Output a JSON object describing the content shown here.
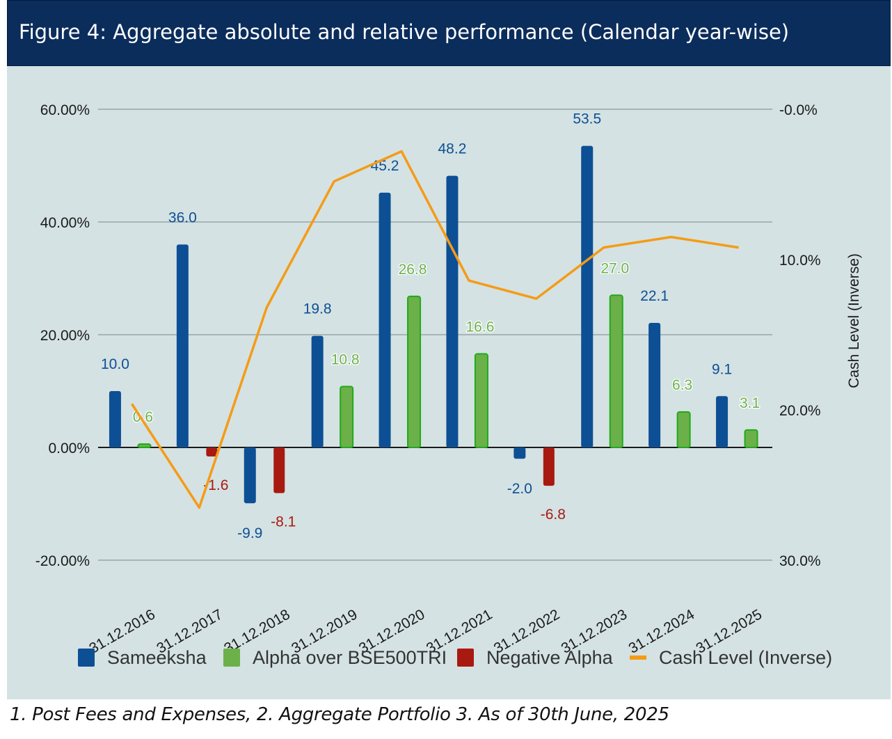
{
  "header": {
    "title": "Figure 4:  Aggregate absolute and relative performance (Calendar year-wise)"
  },
  "footnote": "1. Post Fees and Expenses, 2. Aggregate Portfolio  3. As of 30th June, 2025",
  "colors": {
    "sameeksha": "#0d4f94",
    "alpha": "#6cb04a",
    "alpha_border": "#1faa1a",
    "negative": "#a81a10",
    "cash": "#f59b16",
    "background": "#d4e2e3",
    "title_bar": "#0b2d5c"
  },
  "chart_data": {
    "type": "bar",
    "categories": [
      "31.12.2016",
      "31.12.2017",
      "31.12.2018",
      "31.12.2019",
      "31.12.2020",
      "31.12.2021",
      "31.12.2022",
      "31.12.2023",
      "31.12.2024",
      "31.12.2025"
    ],
    "series": [
      {
        "name": "Sameeksha",
        "axis": "left",
        "values": [
          10.0,
          36.0,
          -9.9,
          19.8,
          45.2,
          48.2,
          -2.0,
          53.5,
          22.1,
          9.1
        ],
        "labels": [
          "10.0",
          "36.0",
          "-9.9",
          "19.8",
          "45.2",
          "48.2",
          "-2.0",
          "53.5",
          "22.1",
          "9.1"
        ]
      },
      {
        "name": "Alpha over BSE500TRI",
        "axis": "left",
        "values": [
          0.6,
          null,
          null,
          10.8,
          26.8,
          16.6,
          null,
          27.0,
          6.3,
          3.1
        ],
        "labels": [
          "0.6",
          "",
          "",
          "10.8",
          "26.8",
          "16.6",
          "",
          "27.0",
          "6.3",
          "3.1"
        ]
      },
      {
        "name": "Negative Alpha",
        "axis": "left",
        "values": [
          null,
          -1.6,
          -8.1,
          null,
          null,
          null,
          -6.8,
          null,
          null,
          null
        ],
        "labels": [
          "",
          "-1.6",
          "-8.1",
          "",
          "",
          "",
          "-6.8",
          "",
          "",
          ""
        ]
      },
      {
        "name": "Cash Level (Inverse)",
        "type": "line",
        "axis": "right",
        "values": [
          19.6,
          26.5,
          13.2,
          4.8,
          2.8,
          11.4,
          12.6,
          9.2,
          8.5,
          9.2
        ]
      }
    ],
    "y_left": {
      "ylim": [
        -20,
        60
      ],
      "ticks": [
        "60.00%",
        "40.00%",
        "20.00%",
        "0.00%",
        "-20.00%"
      ],
      "tick_values": [
        60,
        40,
        20,
        0,
        -20
      ]
    },
    "y_right": {
      "label": "Cash Level (Inverse)",
      "ylim": [
        0,
        30
      ],
      "inverted": true,
      "ticks": [
        "-0.0%",
        "10.0%",
        "20.0%",
        "30.0%"
      ],
      "tick_values": [
        0,
        10,
        20,
        30
      ]
    },
    "legend": {
      "placement": "bottom",
      "items": [
        "Sameeksha",
        "Alpha over BSE500TRI",
        "Negative Alpha",
        "Cash Level (Inverse)"
      ]
    },
    "grid": true
  }
}
